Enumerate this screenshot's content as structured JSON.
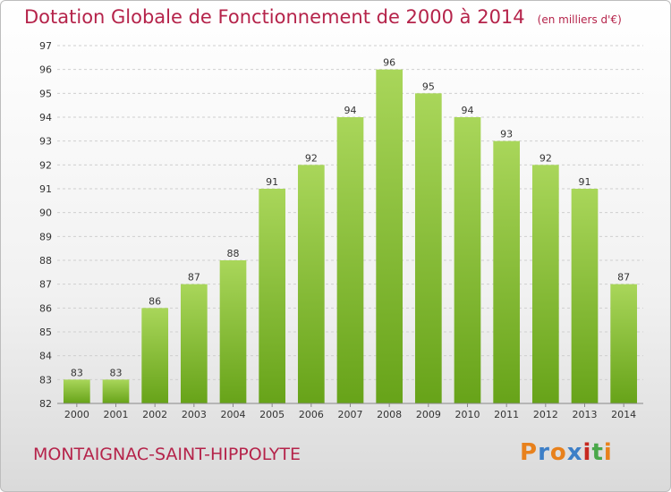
{
  "header": {
    "title": "Dotation Globale de Fonctionnement de 2000 à 2014",
    "unit": "(en milliers d'€)"
  },
  "footer": {
    "commune": "MONTAIGNAC-SAINT-HIPPOLYTE",
    "logo_text": "Proxiti",
    "logo_colors": [
      "#e8811c",
      "#3d7fc7",
      "#e8811c",
      "#3d7fc7",
      "#c7281f",
      "#4aa84a",
      "#e8811c"
    ]
  },
  "colors": {
    "bar_light": "#a9d65a",
    "bar_dark": "#67a319",
    "accent": "#b5234a"
  },
  "chart_data": {
    "type": "bar",
    "title": "Dotation Globale de Fonctionnement de 2000 à 2014",
    "xlabel": "",
    "ylabel": "",
    "categories": [
      "2000",
      "2001",
      "2002",
      "2003",
      "2004",
      "2005",
      "2006",
      "2007",
      "2008",
      "2009",
      "2010",
      "2011",
      "2012",
      "2013",
      "2014"
    ],
    "values": [
      83,
      83,
      86,
      87,
      88,
      91,
      92,
      94,
      96,
      95,
      94,
      93,
      92,
      91,
      87
    ],
    "ylim": [
      82,
      97
    ],
    "yticks": [
      82,
      83,
      84,
      85,
      86,
      87,
      88,
      89,
      90,
      91,
      92,
      93,
      94,
      95,
      96,
      97
    ],
    "grid": true,
    "legend": "none"
  }
}
